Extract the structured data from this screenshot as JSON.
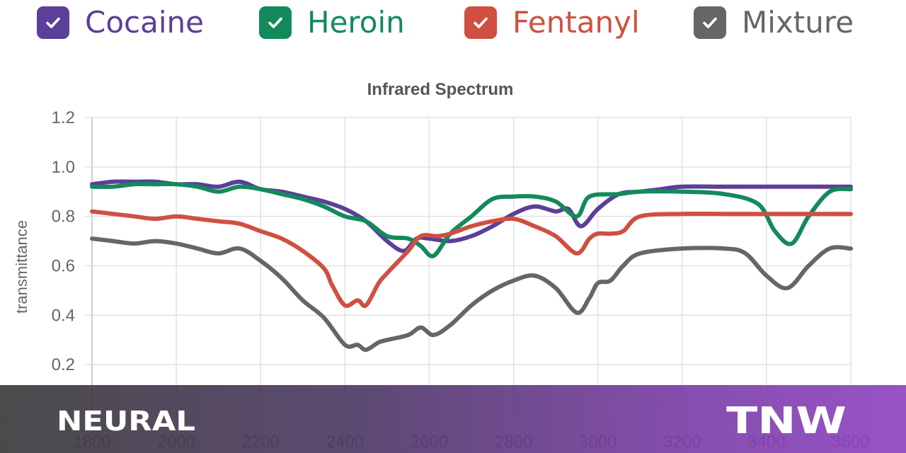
{
  "legend": [
    {
      "label": "Cocaine",
      "color": "#5b3f99"
    },
    {
      "label": "Heroin",
      "color": "#138a5b"
    },
    {
      "label": "Fentanyl",
      "color": "#cf5040"
    },
    {
      "label": "Mixture",
      "color": "#666666"
    }
  ],
  "chart_data": {
    "type": "line",
    "title": "Infrared Spectrum",
    "xlabel": "",
    "ylabel": "transmittance",
    "xlim": [
      1800,
      3600
    ],
    "ylim": [
      0,
      1.2
    ],
    "xticks": [
      1800,
      2000,
      2200,
      2400,
      2600,
      2800,
      3000,
      3200,
      3400,
      3600
    ],
    "yticks": [
      0.2,
      0.4,
      0.6,
      0.8,
      1.0,
      1.2
    ],
    "ytick_labels": [
      "0.2",
      "0.4",
      "0.6",
      "0.8",
      "1.0",
      "1.2"
    ],
    "grid": true,
    "series": [
      {
        "name": "Cocaine",
        "color": "#5b3f99",
        "x": [
          1800,
          1850,
          1900,
          1950,
          2000,
          2050,
          2100,
          2150,
          2200,
          2250,
          2300,
          2350,
          2400,
          2450,
          2500,
          2540,
          2570,
          2600,
          2650,
          2700,
          2750,
          2800,
          2850,
          2900,
          2930,
          2960,
          3000,
          3050,
          3100,
          3150,
          3200,
          3300,
          3400,
          3500,
          3600
        ],
        "y": [
          0.93,
          0.94,
          0.94,
          0.94,
          0.93,
          0.93,
          0.92,
          0.94,
          0.91,
          0.9,
          0.88,
          0.86,
          0.83,
          0.78,
          0.7,
          0.66,
          0.71,
          0.71,
          0.7,
          0.72,
          0.76,
          0.81,
          0.84,
          0.82,
          0.83,
          0.76,
          0.83,
          0.89,
          0.9,
          0.91,
          0.92,
          0.92,
          0.92,
          0.92,
          0.92
        ]
      },
      {
        "name": "Heroin",
        "color": "#138a5b",
        "x": [
          1800,
          1850,
          1900,
          1950,
          2000,
          2050,
          2100,
          2150,
          2200,
          2250,
          2300,
          2350,
          2400,
          2450,
          2500,
          2550,
          2580,
          2610,
          2650,
          2700,
          2750,
          2800,
          2850,
          2900,
          2950,
          2980,
          3050,
          3100,
          3200,
          3300,
          3380,
          3420,
          3460,
          3500,
          3550,
          3600
        ],
        "y": [
          0.92,
          0.92,
          0.93,
          0.93,
          0.93,
          0.92,
          0.9,
          0.92,
          0.91,
          0.89,
          0.87,
          0.84,
          0.8,
          0.78,
          0.72,
          0.71,
          0.68,
          0.64,
          0.73,
          0.8,
          0.87,
          0.88,
          0.88,
          0.86,
          0.8,
          0.88,
          0.89,
          0.9,
          0.9,
          0.89,
          0.85,
          0.74,
          0.69,
          0.8,
          0.9,
          0.91
        ]
      },
      {
        "name": "Fentanyl",
        "color": "#cf5040",
        "x": [
          1800,
          1850,
          1900,
          1950,
          2000,
          2050,
          2100,
          2150,
          2200,
          2250,
          2300,
          2350,
          2370,
          2400,
          2430,
          2450,
          2480,
          2500,
          2550,
          2580,
          2620,
          2650,
          2700,
          2750,
          2800,
          2850,
          2900,
          2950,
          2980,
          3000,
          3030,
          3060,
          3100,
          3200,
          3300,
          3400,
          3500,
          3600
        ],
        "y": [
          0.82,
          0.81,
          0.8,
          0.79,
          0.8,
          0.79,
          0.78,
          0.77,
          0.74,
          0.71,
          0.66,
          0.59,
          0.52,
          0.44,
          0.46,
          0.44,
          0.53,
          0.57,
          0.66,
          0.72,
          0.72,
          0.73,
          0.76,
          0.78,
          0.79,
          0.76,
          0.72,
          0.65,
          0.71,
          0.73,
          0.73,
          0.74,
          0.8,
          0.81,
          0.81,
          0.81,
          0.81,
          0.81
        ]
      },
      {
        "name": "Mixture",
        "color": "#666666",
        "x": [
          1800,
          1850,
          1900,
          1950,
          2000,
          2050,
          2100,
          2150,
          2200,
          2250,
          2300,
          2350,
          2400,
          2430,
          2450,
          2480,
          2500,
          2550,
          2580,
          2610,
          2650,
          2700,
          2750,
          2800,
          2850,
          2900,
          2950,
          2980,
          3000,
          3030,
          3060,
          3100,
          3200,
          3300,
          3350,
          3400,
          3450,
          3500,
          3550,
          3600
        ],
        "y": [
          0.71,
          0.7,
          0.69,
          0.7,
          0.69,
          0.67,
          0.65,
          0.67,
          0.62,
          0.55,
          0.46,
          0.39,
          0.28,
          0.28,
          0.26,
          0.29,
          0.3,
          0.32,
          0.35,
          0.32,
          0.36,
          0.44,
          0.5,
          0.54,
          0.56,
          0.51,
          0.41,
          0.47,
          0.53,
          0.54,
          0.6,
          0.65,
          0.67,
          0.67,
          0.65,
          0.56,
          0.51,
          0.6,
          0.67,
          0.67
        ]
      }
    ]
  },
  "brand": {
    "left": "NEURAL",
    "right": "TNW"
  }
}
